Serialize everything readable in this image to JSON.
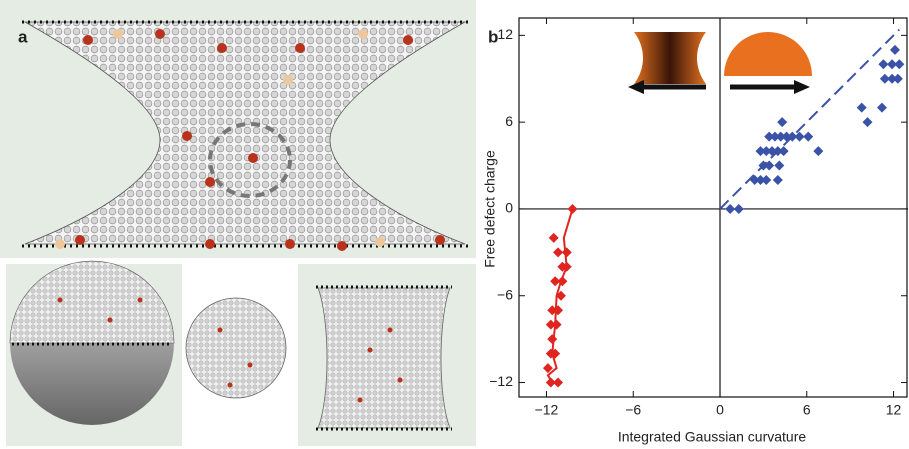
{
  "panel_labels": [
    "a",
    "b"
  ],
  "chart_data": {
    "type": "scatter",
    "xlabel": "Integrated Gaussian curvature",
    "ylabel": "Free defect charge",
    "xlim": [
      -13.9,
      13
    ],
    "ylim": [
      -13,
      13.2
    ],
    "xticks": [
      {
        "value": -12,
        "label": "−12"
      },
      {
        "value": -6,
        "label": "−6"
      },
      0,
      6,
      12
    ],
    "yticks": [
      {
        "value": -12,
        "label": "−12"
      },
      {
        "value": -6,
        "label": "−6"
      },
      0,
      6,
      12
    ],
    "series": [
      {
        "mode": "markers",
        "color": "#e0241f",
        "x": [
          -10.2,
          -11.5,
          -11.2,
          -10.6,
          -10.9,
          -10.6,
          -11.4,
          -10.9,
          -11.0,
          -11.6,
          -11.2,
          -11.7,
          -11.3,
          -11.6,
          -11.7,
          -11.4,
          -11.9,
          -11.7,
          -11.2
        ],
        "values": [
          0,
          -2,
          -3,
          -3,
          -4,
          -4,
          -5,
          -5,
          -6,
          -7,
          -7,
          -8,
          -8,
          -9,
          -10,
          -10,
          -11,
          -12,
          -12
        ]
      },
      {
        "mode": "line",
        "dashed": false,
        "color": "#e0241f",
        "x": [
          -10.2,
          -10.8,
          -10.6,
          -11.0,
          -11.3,
          -11.4,
          -11.5,
          -11.6,
          -11.3,
          -11.9,
          -11.6
        ],
        "values": [
          0,
          -2,
          -4,
          -5,
          -6,
          -8,
          -9,
          -10,
          -11,
          -11.5,
          -12
        ]
      },
      {
        "mode": "markers",
        "color": "#3a52a8",
        "x": [
          0.7,
          1.3,
          2.4,
          2.8,
          3.2,
          4.0,
          3.0,
          3.4,
          4.1,
          2.8,
          3.2,
          3.6,
          4.0,
          4.4,
          6.8,
          3.4,
          3.8,
          4.2,
          4.6,
          5.0,
          5.5,
          6.1,
          4.3,
          9.8,
          11.2,
          10.2,
          11.4,
          11.9,
          12.3,
          11.3,
          11.9,
          12.4,
          12.1
        ],
        "values": [
          0,
          0,
          2,
          2,
          2,
          2,
          3,
          3,
          3,
          4,
          4,
          4,
          4,
          4,
          4,
          5,
          5,
          5,
          5,
          5,
          5,
          5,
          6,
          7,
          7,
          6,
          9,
          9,
          9,
          10,
          10,
          10,
          11
        ]
      },
      {
        "mode": "line",
        "dashed": true,
        "color": "#3a52a8",
        "x": [
          0,
          12.4
        ],
        "values": [
          0,
          12.4
        ]
      }
    ]
  }
}
